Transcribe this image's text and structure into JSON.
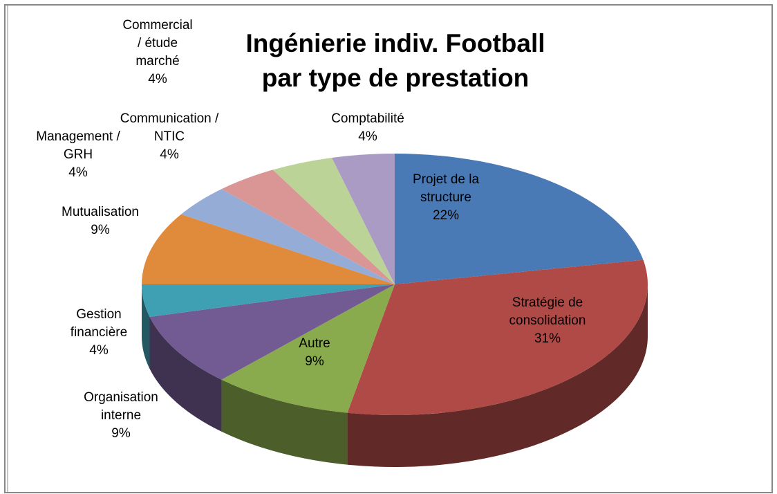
{
  "chart_data": {
    "type": "pie",
    "title": "Ingénierie indiv. Football par type de prestation",
    "categories": [
      "Projet de la structure",
      "Stratégie de consolidation",
      "Autre",
      "Organisation interne",
      "Gestion financière",
      "Mutualisation",
      "Management / GRH",
      "Communication / NTIC",
      "Commercial / étude marché",
      "Comptabilité"
    ],
    "values": [
      22,
      31,
      9,
      9,
      4,
      9,
      4,
      4,
      4,
      4
    ],
    "value_labels": [
      "22%",
      "31%",
      "9%",
      "9%",
      "4%",
      "9%",
      "4%",
      "4%",
      "4%",
      "4%"
    ],
    "colors": [
      "#4a7ab5",
      "#b04a47",
      "#8aab4d",
      "#725a93",
      "#3f9fb3",
      "#e08a3c",
      "#95acd6",
      "#d99694",
      "#bcd398",
      "#a99bc3"
    ]
  }
}
